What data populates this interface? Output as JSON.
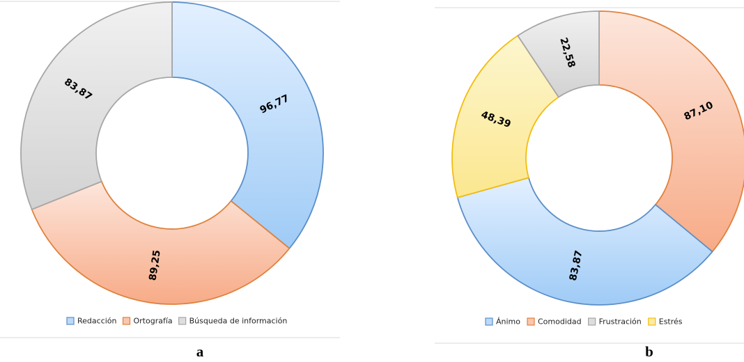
{
  "colors": {
    "blue": {
      "light": "#e3f0ff",
      "dark": "#9fcbf6",
      "stroke": "#5b8fc9",
      "legend_fill": "#bcd9f8"
    },
    "orange": {
      "light": "#fde6dc",
      "dark": "#f7ab87",
      "stroke": "#e0813c",
      "legend_fill": "#f9c6ae"
    },
    "gray": {
      "light": "#f1f1f1",
      "dark": "#d2d2d2",
      "stroke": "#a6a6a6",
      "legend_fill": "#dddddd"
    },
    "yellow": {
      "light": "#fdf6cf",
      "dark": "#fbe78f",
      "stroke": "#f2bd10",
      "legend_fill": "#fbeba8"
    }
  },
  "chart_data": [
    {
      "type": "pie",
      "style": "donut",
      "panel": "a",
      "legend_position": "bottom",
      "series": [
        {
          "name": "Redacción",
          "value": 96.77,
          "label": "96,77",
          "color": "blue"
        },
        {
          "name": "Ortografía",
          "value": 89.25,
          "label": "89,25",
          "color": "orange"
        },
        {
          "name": "Búsqueda de información",
          "value": 83.87,
          "label": "83,87",
          "color": "gray"
        }
      ]
    },
    {
      "type": "pie",
      "style": "donut",
      "panel": "b",
      "legend_position": "bottom",
      "series": [
        {
          "name": "Ánimo",
          "value": 83.87,
          "label": "83,87",
          "color": "blue"
        },
        {
          "name": "Comodidad",
          "value": 87.1,
          "label": "87,10",
          "color": "orange"
        },
        {
          "name": "Frustración",
          "value": 22.58,
          "label": "22,58",
          "color": "gray"
        },
        {
          "name": "Estrés",
          "value": 48.39,
          "label": "48,39",
          "color": "yellow"
        }
      ],
      "clockwise_order": [
        "Comodidad",
        "Ánimo",
        "Estrés",
        "Frustración"
      ]
    }
  ]
}
